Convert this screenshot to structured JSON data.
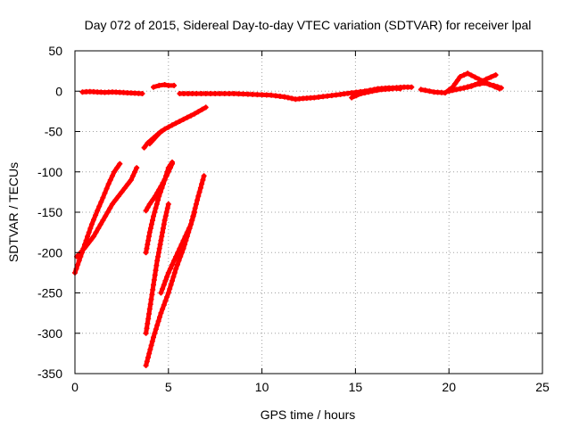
{
  "chart_data": {
    "type": "scatter",
    "title": "Day 072 of 2015, Sidereal Day-to-day VTEC variation (SDTVAR) for receiver lpal",
    "xlabel": "GPS time / hours",
    "ylabel": "SDTVAR / TECUs",
    "xlim": [
      0,
      25
    ],
    "ylim": [
      -350,
      50
    ],
    "x_ticks": [
      0,
      5,
      10,
      15,
      20,
      25
    ],
    "y_ticks": [
      50,
      0,
      -50,
      -100,
      -150,
      -200,
      -250,
      -300,
      -350
    ],
    "x_tick_labels": [
      "0",
      "5",
      "10",
      "15",
      "20",
      "25"
    ],
    "y_tick_labels": [
      "50",
      "0",
      "-50",
      "-100",
      "-150",
      "-200",
      "-250",
      "-300",
      "-350"
    ],
    "grid": true,
    "legend": "none",
    "marker": "plus",
    "color": "#ff0000",
    "series": [
      {
        "x": [
          0.4,
          0.8,
          1.2,
          1.6,
          2.0,
          2.4,
          2.8,
          3.2,
          3.6
        ],
        "y": [
          -1,
          -0.5,
          -1,
          -1.5,
          -1,
          -1.5,
          -2,
          -2.5,
          -3
        ]
      },
      {
        "x": [
          4.2,
          4.5,
          4.8,
          5.0,
          5.3
        ],
        "y": [
          5,
          7,
          8,
          7,
          7
        ]
      },
      {
        "x": [
          5.6,
          6.5,
          7.5,
          8.5,
          9.5,
          10.5,
          11.2,
          11.8,
          12.2,
          12.8,
          13.5,
          14.2,
          14.8,
          15.5,
          16.2,
          17.0,
          17.6,
          18.0
        ],
        "y": [
          -3,
          -3,
          -3,
          -3,
          -4,
          -5,
          -7,
          -10,
          -9,
          -8,
          -6,
          -4,
          -2,
          0,
          2,
          4,
          5,
          5
        ]
      },
      {
        "x": [
          15.0,
          15.6,
          16.2,
          16.8,
          17.4
        ],
        "y": [
          -4,
          0,
          3,
          4,
          3
        ]
      },
      {
        "x": [
          14.8,
          15.3,
          15.9,
          16.4,
          17.0
        ],
        "y": [
          -8,
          -3,
          0,
          2,
          3
        ]
      },
      {
        "x": [
          18.5,
          19.2,
          19.8,
          20.2,
          20.6,
          21.0,
          21.6,
          22.2,
          22.7
        ],
        "y": [
          2,
          -1,
          -2,
          5,
          18,
          22,
          15,
          8,
          3
        ]
      },
      {
        "x": [
          20.0,
          20.6,
          21.2,
          21.6,
          22.0,
          22.5
        ],
        "y": [
          0,
          3,
          6,
          10,
          15,
          20
        ]
      },
      {
        "x": [
          20.8,
          21.4,
          21.9,
          22.4,
          22.8
        ],
        "y": [
          4,
          8,
          10,
          7,
          4
        ]
      },
      {
        "x": [
          3.7,
          3.9,
          4.2,
          4.5,
          4.8,
          5.2,
          5.8,
          6.4,
          7.0
        ],
        "y": [
          -70,
          -64,
          -58,
          -52,
          -47,
          -42,
          -35,
          -28,
          -20
        ]
      },
      {
        "x": [
          4.0,
          4.2,
          4.4,
          4.6
        ],
        "y": [
          -65,
          -60,
          -55,
          -50
        ]
      },
      {
        "x": [
          0.0,
          0.3,
          0.6,
          0.9,
          1.2,
          1.5,
          1.8,
          2.1,
          2.4
        ],
        "y": [
          -225,
          -205,
          -185,
          -165,
          -148,
          -132,
          -115,
          -100,
          -90
        ]
      },
      {
        "x": [
          0.1,
          0.5,
          1.0,
          1.5,
          2.0,
          2.5,
          3.0,
          3.3
        ],
        "y": [
          -205,
          -195,
          -180,
          -160,
          -140,
          -125,
          -110,
          -95
        ]
      },
      {
        "x": [
          3.8,
          4.0,
          4.2,
          4.5,
          4.8,
          5.0,
          5.2
        ],
        "y": [
          -200,
          -175,
          -155,
          -130,
          -110,
          -95,
          -88
        ]
      },
      {
        "x": [
          3.8,
          4.0,
          4.3,
          4.6,
          4.9,
          5.2
        ],
        "y": [
          -148,
          -140,
          -130,
          -118,
          -105,
          -90
        ]
      },
      {
        "x": [
          3.8,
          4.0,
          4.2,
          4.4,
          4.6,
          4.8,
          5.0
        ],
        "y": [
          -300,
          -270,
          -240,
          -210,
          -185,
          -160,
          -140
        ]
      },
      {
        "x": [
          3.8,
          4.2,
          4.6,
          5.0,
          5.4,
          5.8,
          6.2,
          6.6,
          6.9
        ],
        "y": [
          -340,
          -305,
          -275,
          -250,
          -220,
          -195,
          -165,
          -130,
          -105
        ]
      },
      {
        "x": [
          4.6,
          5.0,
          5.4,
          5.8,
          6.2,
          6.4
        ],
        "y": [
          -250,
          -225,
          -205,
          -185,
          -165,
          -150
        ]
      }
    ]
  }
}
